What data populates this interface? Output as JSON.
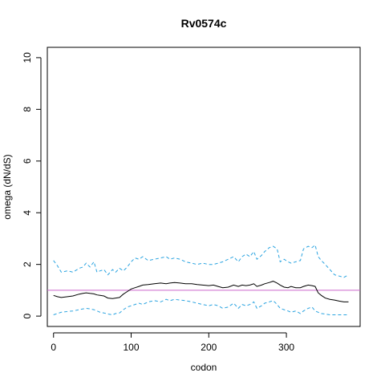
{
  "chart_data": {
    "type": "line",
    "title": "Rv0574c",
    "xlabel": "codon",
    "ylabel": "omega (dN/dS)",
    "xlim": [
      -8,
      395
    ],
    "ylim": [
      -0.4,
      10.4
    ],
    "xticks": [
      0,
      100,
      200,
      300
    ],
    "yticks": [
      0,
      2,
      4,
      6,
      8,
      10
    ],
    "grid": false,
    "reference_line": {
      "y": 1,
      "color": "#cc66cc"
    },
    "series": [
      {
        "style": "dashed",
        "color": "#29a3e0",
        "x": [
          0,
          5,
          10,
          18,
          25,
          33,
          38,
          42,
          47,
          52,
          56,
          60,
          65,
          70,
          76,
          80,
          85,
          90,
          95,
          100,
          105,
          110,
          115,
          122,
          130,
          138,
          145,
          150,
          156,
          163,
          170,
          178,
          185,
          192,
          200,
          206,
          212,
          218,
          225,
          232,
          238,
          243,
          248,
          253,
          258,
          262,
          268,
          272,
          278,
          283,
          288,
          292,
          297,
          302,
          306,
          312,
          318,
          322,
          328,
          333,
          337,
          341,
          345,
          350,
          356,
          362,
          368,
          374,
          380
        ],
        "y": [
          2.15,
          1.95,
          1.7,
          1.75,
          1.7,
          1.85,
          1.9,
          2.05,
          1.9,
          2.1,
          1.7,
          1.75,
          1.8,
          1.6,
          1.8,
          1.7,
          1.85,
          1.75,
          1.9,
          2.1,
          2.25,
          2.2,
          2.3,
          2.15,
          2.2,
          2.25,
          2.3,
          2.2,
          2.25,
          2.2,
          2.1,
          2.05,
          2.0,
          2.05,
          2.0,
          2.0,
          2.05,
          2.1,
          2.2,
          2.3,
          2.1,
          2.3,
          2.4,
          2.3,
          2.5,
          2.2,
          2.35,
          2.5,
          2.65,
          2.7,
          2.6,
          2.1,
          2.2,
          2.1,
          2.05,
          2.1,
          2.15,
          2.6,
          2.7,
          2.65,
          2.75,
          2.3,
          2.15,
          2.0,
          1.8,
          1.6,
          1.55,
          1.5,
          1.6
        ]
      },
      {
        "style": "solid",
        "color": "#000000",
        "x": [
          0,
          5,
          10,
          18,
          25,
          33,
          38,
          42,
          47,
          52,
          56,
          60,
          65,
          70,
          76,
          80,
          85,
          90,
          95,
          100,
          105,
          110,
          115,
          122,
          130,
          138,
          145,
          150,
          156,
          163,
          170,
          178,
          185,
          192,
          200,
          206,
          212,
          218,
          225,
          232,
          238,
          243,
          248,
          253,
          258,
          262,
          268,
          272,
          278,
          283,
          288,
          292,
          297,
          302,
          306,
          312,
          318,
          322,
          328,
          333,
          337,
          341,
          345,
          350,
          356,
          362,
          368,
          374,
          380
        ],
        "y": [
          0.8,
          0.75,
          0.72,
          0.75,
          0.78,
          0.85,
          0.88,
          0.9,
          0.88,
          0.86,
          0.82,
          0.8,
          0.78,
          0.7,
          0.68,
          0.7,
          0.72,
          0.85,
          0.95,
          1.05,
          1.1,
          1.15,
          1.2,
          1.22,
          1.25,
          1.28,
          1.25,
          1.28,
          1.3,
          1.28,
          1.25,
          1.25,
          1.22,
          1.2,
          1.18,
          1.2,
          1.15,
          1.1,
          1.12,
          1.2,
          1.15,
          1.2,
          1.18,
          1.2,
          1.25,
          1.15,
          1.2,
          1.25,
          1.3,
          1.35,
          1.28,
          1.2,
          1.12,
          1.1,
          1.15,
          1.1,
          1.1,
          1.15,
          1.2,
          1.18,
          1.15,
          0.9,
          0.8,
          0.7,
          0.65,
          0.62,
          0.58,
          0.55,
          0.55
        ]
      },
      {
        "style": "dashed",
        "color": "#29a3e0",
        "x": [
          0,
          5,
          10,
          18,
          25,
          33,
          38,
          42,
          47,
          52,
          56,
          60,
          65,
          70,
          76,
          80,
          85,
          90,
          95,
          100,
          105,
          110,
          115,
          122,
          130,
          138,
          145,
          150,
          156,
          163,
          170,
          178,
          185,
          192,
          200,
          206,
          212,
          218,
          225,
          232,
          238,
          243,
          248,
          253,
          258,
          262,
          268,
          272,
          278,
          283,
          288,
          292,
          297,
          302,
          306,
          312,
          318,
          322,
          328,
          333,
          337,
          341,
          345,
          350,
          356,
          362,
          368,
          374,
          380
        ],
        "y": [
          0.05,
          0.1,
          0.15,
          0.18,
          0.2,
          0.25,
          0.28,
          0.3,
          0.28,
          0.25,
          0.2,
          0.15,
          0.12,
          0.08,
          0.05,
          0.1,
          0.12,
          0.25,
          0.35,
          0.4,
          0.45,
          0.5,
          0.45,
          0.55,
          0.6,
          0.55,
          0.65,
          0.6,
          0.65,
          0.62,
          0.6,
          0.55,
          0.5,
          0.45,
          0.4,
          0.45,
          0.4,
          0.3,
          0.35,
          0.5,
          0.3,
          0.45,
          0.4,
          0.45,
          0.55,
          0.3,
          0.4,
          0.5,
          0.55,
          0.6,
          0.45,
          0.3,
          0.25,
          0.2,
          0.15,
          0.2,
          0.1,
          0.2,
          0.3,
          0.35,
          0.2,
          0.15,
          0.1,
          0.08,
          0.05,
          0.05,
          0.05,
          0.05,
          0.05
        ]
      }
    ]
  }
}
